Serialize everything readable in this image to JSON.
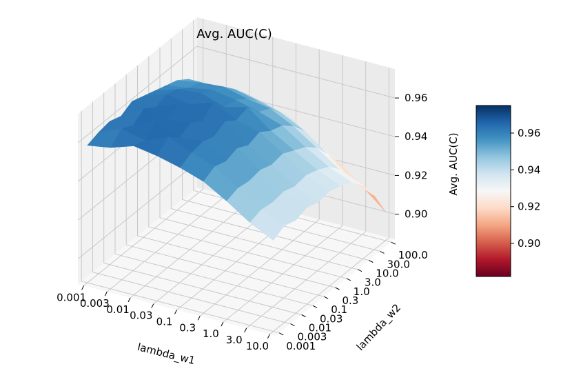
{
  "chart_data": {
    "type": "surface3d",
    "title": "Avg. AUC(C)",
    "xlabel": "lambda_w1",
    "ylabel": "lambda_w2",
    "zlabel": "Avg. AUC(C)",
    "x_ticks": [
      "0.001",
      "0.003",
      "0.01",
      "0.03",
      "0.1",
      "0.3",
      "1.0",
      "3.0",
      "10.0"
    ],
    "y_ticks": [
      "0.001",
      "0.003",
      "0.01",
      "0.03",
      "0.1",
      "0.3",
      "1.0",
      "3.0",
      "10.0",
      "30.0",
      "100.0"
    ],
    "z_ticks": [
      "0.90",
      "0.92",
      "0.94",
      "0.96"
    ],
    "zlim": [
      0.887,
      0.975
    ],
    "colorbar": {
      "colormap": "RdBu",
      "range": [
        0.882,
        0.975
      ],
      "ticks": [
        "0.90",
        "0.92",
        "0.94",
        "0.96"
      ]
    },
    "z_values": [
      [
        0.958,
        0.96,
        0.961,
        0.959,
        0.962,
        0.96,
        0.958,
        0.956,
        0.954,
        0.95,
        0.944
      ],
      [
        0.96,
        0.965,
        0.962,
        0.966,
        0.962,
        0.964,
        0.962,
        0.958,
        0.956,
        0.95,
        0.943
      ],
      [
        0.964,
        0.962,
        0.968,
        0.963,
        0.967,
        0.962,
        0.963,
        0.96,
        0.957,
        0.951,
        0.944
      ],
      [
        0.962,
        0.967,
        0.962,
        0.965,
        0.961,
        0.966,
        0.959,
        0.958,
        0.954,
        0.948,
        0.941
      ],
      [
        0.959,
        0.962,
        0.963,
        0.961,
        0.964,
        0.96,
        0.962,
        0.955,
        0.952,
        0.945,
        0.937
      ],
      [
        0.955,
        0.958,
        0.956,
        0.958,
        0.955,
        0.957,
        0.953,
        0.951,
        0.946,
        0.939,
        0.928
      ],
      [
        0.948,
        0.95,
        0.949,
        0.95,
        0.948,
        0.949,
        0.946,
        0.943,
        0.938,
        0.93,
        0.921
      ],
      [
        0.94,
        0.942,
        0.941,
        0.942,
        0.94,
        0.941,
        0.939,
        0.936,
        0.93,
        0.92,
        0.912
      ],
      [
        0.934,
        0.937,
        0.935,
        0.937,
        0.935,
        0.936,
        0.934,
        0.931,
        0.925,
        0.915,
        0.902
      ]
    ]
  }
}
